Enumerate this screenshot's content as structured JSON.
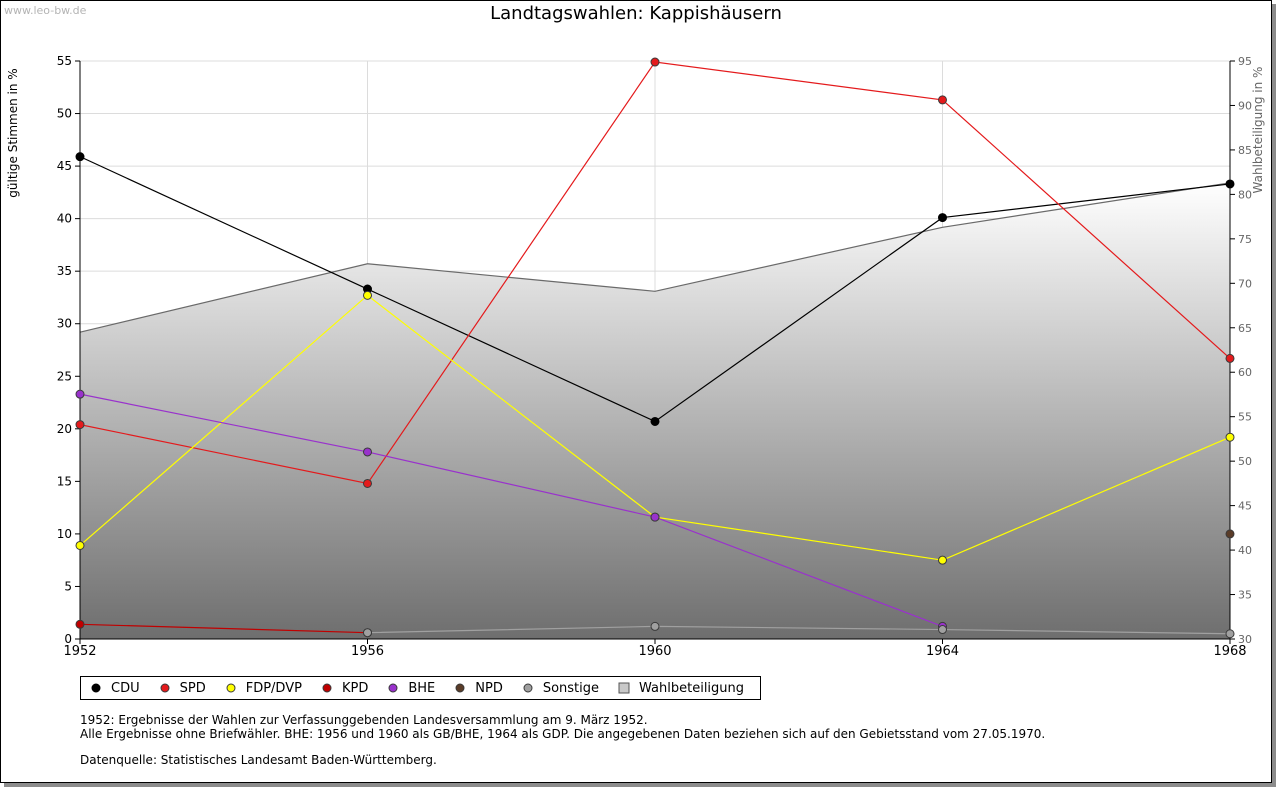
{
  "header": {
    "watermark": "www.leo-bw.de",
    "title": "Landtagswahlen: Kappishäusern"
  },
  "chart_data": {
    "type": "line",
    "title": "Landtagswahlen: Kappishäusern",
    "x": [
      "1952",
      "1956",
      "1960",
      "1964",
      "1968"
    ],
    "ylabel": "gültige Stimmen in %",
    "ylim": [
      0,
      55
    ],
    "yticks": [
      "0",
      "5",
      "10",
      "15",
      "20",
      "25",
      "30",
      "35",
      "40",
      "45",
      "50",
      "55"
    ],
    "y2label": "Wahlbeteiligung in %",
    "y2lim": [
      30,
      95
    ],
    "y2ticks": [
      "30",
      "35",
      "40",
      "45",
      "50",
      "55",
      "60",
      "65",
      "70",
      "75",
      "80",
      "85",
      "90",
      "95"
    ],
    "grid": true,
    "legend_position": "bottom-left",
    "series": [
      {
        "name": "CDU",
        "color": "#000000",
        "values": [
          45.9,
          33.3,
          20.7,
          40.1,
          43.3
        ]
      },
      {
        "name": "SPD",
        "color": "#e41a1c",
        "values": [
          20.4,
          14.8,
          54.9,
          51.3,
          26.7
        ]
      },
      {
        "name": "FDP/DVP",
        "color": "#ffff00",
        "values": [
          8.9,
          32.7,
          11.6,
          7.5,
          19.2
        ]
      },
      {
        "name": "KPD",
        "color": "#c00000",
        "values": [
          1.4,
          0.6,
          null,
          null,
          null
        ]
      },
      {
        "name": "BHE",
        "color": "#9932cc",
        "values": [
          23.3,
          17.8,
          11.6,
          1.2,
          null
        ]
      },
      {
        "name": "NPD",
        "color": "#5a3c28",
        "values": [
          null,
          null,
          null,
          null,
          10.0
        ]
      },
      {
        "name": "Sonstige",
        "color": "#a0a0a0",
        "values": [
          null,
          0.6,
          1.2,
          0.9,
          0.5
        ]
      }
    ],
    "area": {
      "name": "Wahlbeteiligung",
      "axis": "right",
      "values": [
        64.5,
        72.2,
        69.1,
        76.3,
        81.3
      ]
    }
  },
  "notes": {
    "line1": "1952: Ergebnisse der Wahlen zur Verfassunggebenden Landesversammlung am 9. März 1952.",
    "line2": "Alle Ergebnisse ohne Briefwähler. BHE: 1956 und 1960 als GB/BHE, 1964 als GDP. Die angegebenen Daten beziehen sich auf den Gebietsstand vom 27.05.1970.",
    "source": "Datenquelle: Statistisches Landesamt Baden-Württemberg."
  }
}
